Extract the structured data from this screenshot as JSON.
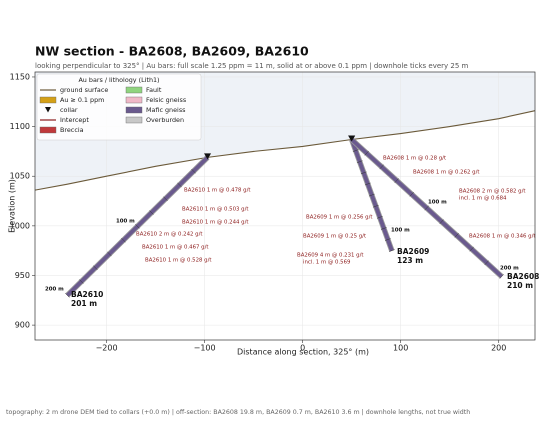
{
  "chart_data": {
    "type": "section",
    "title": "NW section  -  BA2608, BA2609, BA2610",
    "subtitle": "looking perpendicular to 325°   |   Au bars: full scale 1.25 ppm = 11 m, solid at or above 0.1 ppm   |   downhole ticks every 25 m",
    "x_label": "Distance along section, 325°  (m)",
    "y_label": "Elevation (m)",
    "xlim": [
      -273,
      237
    ],
    "ylim": [
      885,
      1155
    ],
    "xticks": [
      {
        "value": -200,
        "label": "−200"
      },
      {
        "value": -100,
        "label": "−100"
      },
      0,
      100,
      200
    ],
    "yticks": [
      900,
      950,
      1000,
      1050,
      1100,
      1150
    ],
    "grid": true,
    "legend": {
      "title": "Au bars / lithology (Lith1)",
      "position": "upper left",
      "items": [
        {
          "name": "ground surface",
          "color": "#6b5a3a",
          "kind": "line"
        },
        {
          "name": "Au ≥ 0.1 ppm",
          "color": "#d4a017",
          "kind": "box"
        },
        {
          "name": "collar",
          "color": "#111111",
          "kind": "triangle"
        },
        {
          "name": "Intercept",
          "color": "#8b1a1a",
          "kind": "line"
        },
        {
          "name": "Breccia",
          "color": "#c0393b",
          "kind": "box"
        },
        {
          "name": "Fault",
          "color": "#90d47f",
          "kind": "box"
        },
        {
          "name": "Felsic gneiss",
          "color": "#f0b8c8",
          "kind": "box"
        },
        {
          "name": "Mafic gneiss",
          "color": "#6a5a8e",
          "kind": "box"
        },
        {
          "name": "Overburden",
          "color": "#c8c8c8",
          "kind": "box"
        }
      ]
    },
    "ground": {
      "color": "#6b5a3a",
      "x": [
        -273,
        -240,
        -200,
        -150,
        -97,
        -50,
        0,
        50,
        100,
        150,
        200,
        237
      ],
      "elevation": [
        1036,
        1042,
        1050,
        1060,
        1069,
        1075,
        1080,
        1087,
        1093,
        1100,
        1108,
        1116
      ]
    },
    "holes": [
      {
        "name": "BA2610",
        "length_label": "201 m",
        "color": "#6a5a8e",
        "x": [
          -97,
          -240
        ],
        "elevation": [
          1069,
          930
        ],
        "depth_labels": [
          "100 m",
          "200 m"
        ],
        "intercepts": [
          "BA2610  1 m @ 0.478 g/t",
          "BA2610  1 m @ 0.503 g/t",
          "BA2610  1 m @ 0.244 g/t",
          "BA2610  2 m @ 0.242 g/t",
          "BA2610  1 m @ 0.467 g/t",
          "BA2610  1 m @ 0.528 g/t"
        ]
      },
      {
        "name": "BA2609",
        "length_label": "123 m",
        "color": "#6a5a8e",
        "x": [
          50,
          91
        ],
        "elevation": [
          1087,
          975
        ],
        "depth_labels": [
          "100 m"
        ],
        "intercepts": [
          "BA2609  1 m @ 0.256 g/t",
          "BA2609  1 m @ 0.25 g/t",
          "BA2609  4 m @ 0.231 g/t",
          "incl. 1 m @ 0.569"
        ]
      },
      {
        "name": "BA2608",
        "length_label": "210 m",
        "color": "#6a5a8e",
        "x": [
          50,
          203
        ],
        "elevation": [
          1087,
          949
        ],
        "depth_labels": [
          "100 m",
          "200 m"
        ],
        "intercepts": [
          "BA2608  1 m @ 0.28 g/t",
          "BA2608  1 m @ 0.262 g/t",
          "BA2608  2 m @ 0.582 g/t",
          "incl. 1 m @ 0.684",
          "BA2608  1 m @ 0.346 g/t"
        ]
      }
    ],
    "footer": "topography: 2 m drone DEM tied to collars (+0.0 m)   |   off-section: BA2608 19.8 m,  BA2609 0.7 m,  BA2610 3.6 m   |   downhole lengths, not true width"
  }
}
